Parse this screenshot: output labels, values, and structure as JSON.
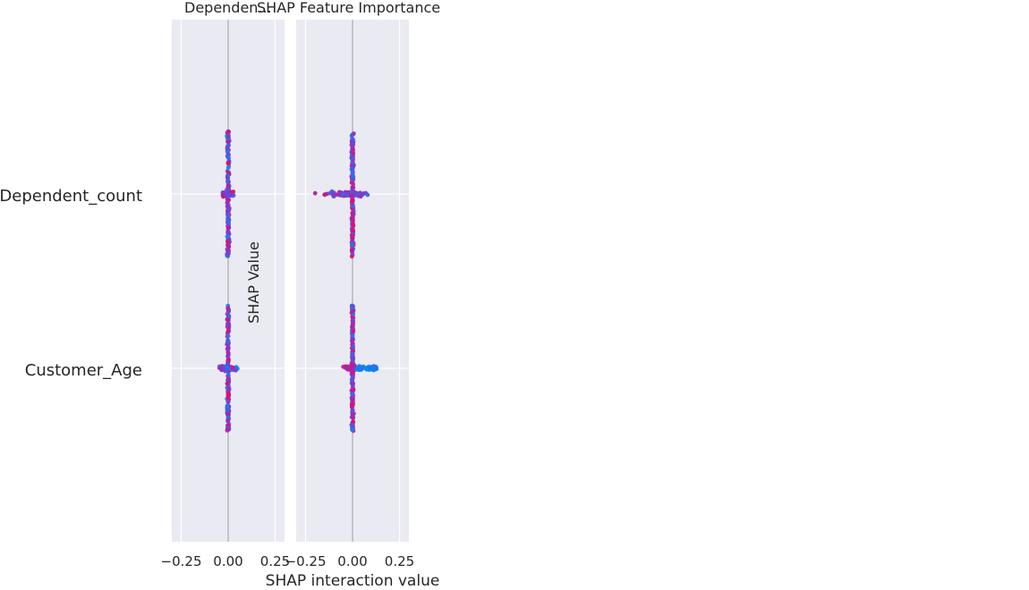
{
  "chart_data": {
    "type": "scatter",
    "title_left": "Dependen...",
    "title_right": "SHAP Feature Importance",
    "xlabel": "SHAP interaction value",
    "overlay_label": "SHAP Value",
    "features": [
      "Dependent_count",
      "Customer_Age"
    ],
    "xlim": [
      -0.3,
      0.3
    ],
    "xticks": [
      -0.25,
      0.0,
      0.25
    ],
    "xtick_labels": [
      "−0.25",
      "0.00",
      "0.25"
    ],
    "grid": true,
    "colors": {
      "background": "#eaeaf2",
      "grid": "#ffffff",
      "low": "#008afb",
      "mid": "#7b3bd8",
      "high": "#ff0052"
    },
    "panels": [
      {
        "name": "Dependent_count",
        "rows": [
          {
            "feature": "Dependent_count",
            "x_min": -0.03,
            "x_max": 0.03,
            "spread": "narrow"
          },
          {
            "feature": "Customer_Age",
            "x_min": -0.05,
            "x_max": 0.05,
            "spread": "narrow"
          }
        ]
      },
      {
        "name": "Customer_Age",
        "rows": [
          {
            "feature": "Dependent_count",
            "x_min": -0.25,
            "x_max": 0.1,
            "spread": "wide-left"
          },
          {
            "feature": "Customer_Age",
            "x_min": -0.05,
            "x_max": 0.13,
            "spread": "wide-right"
          }
        ]
      }
    ]
  }
}
